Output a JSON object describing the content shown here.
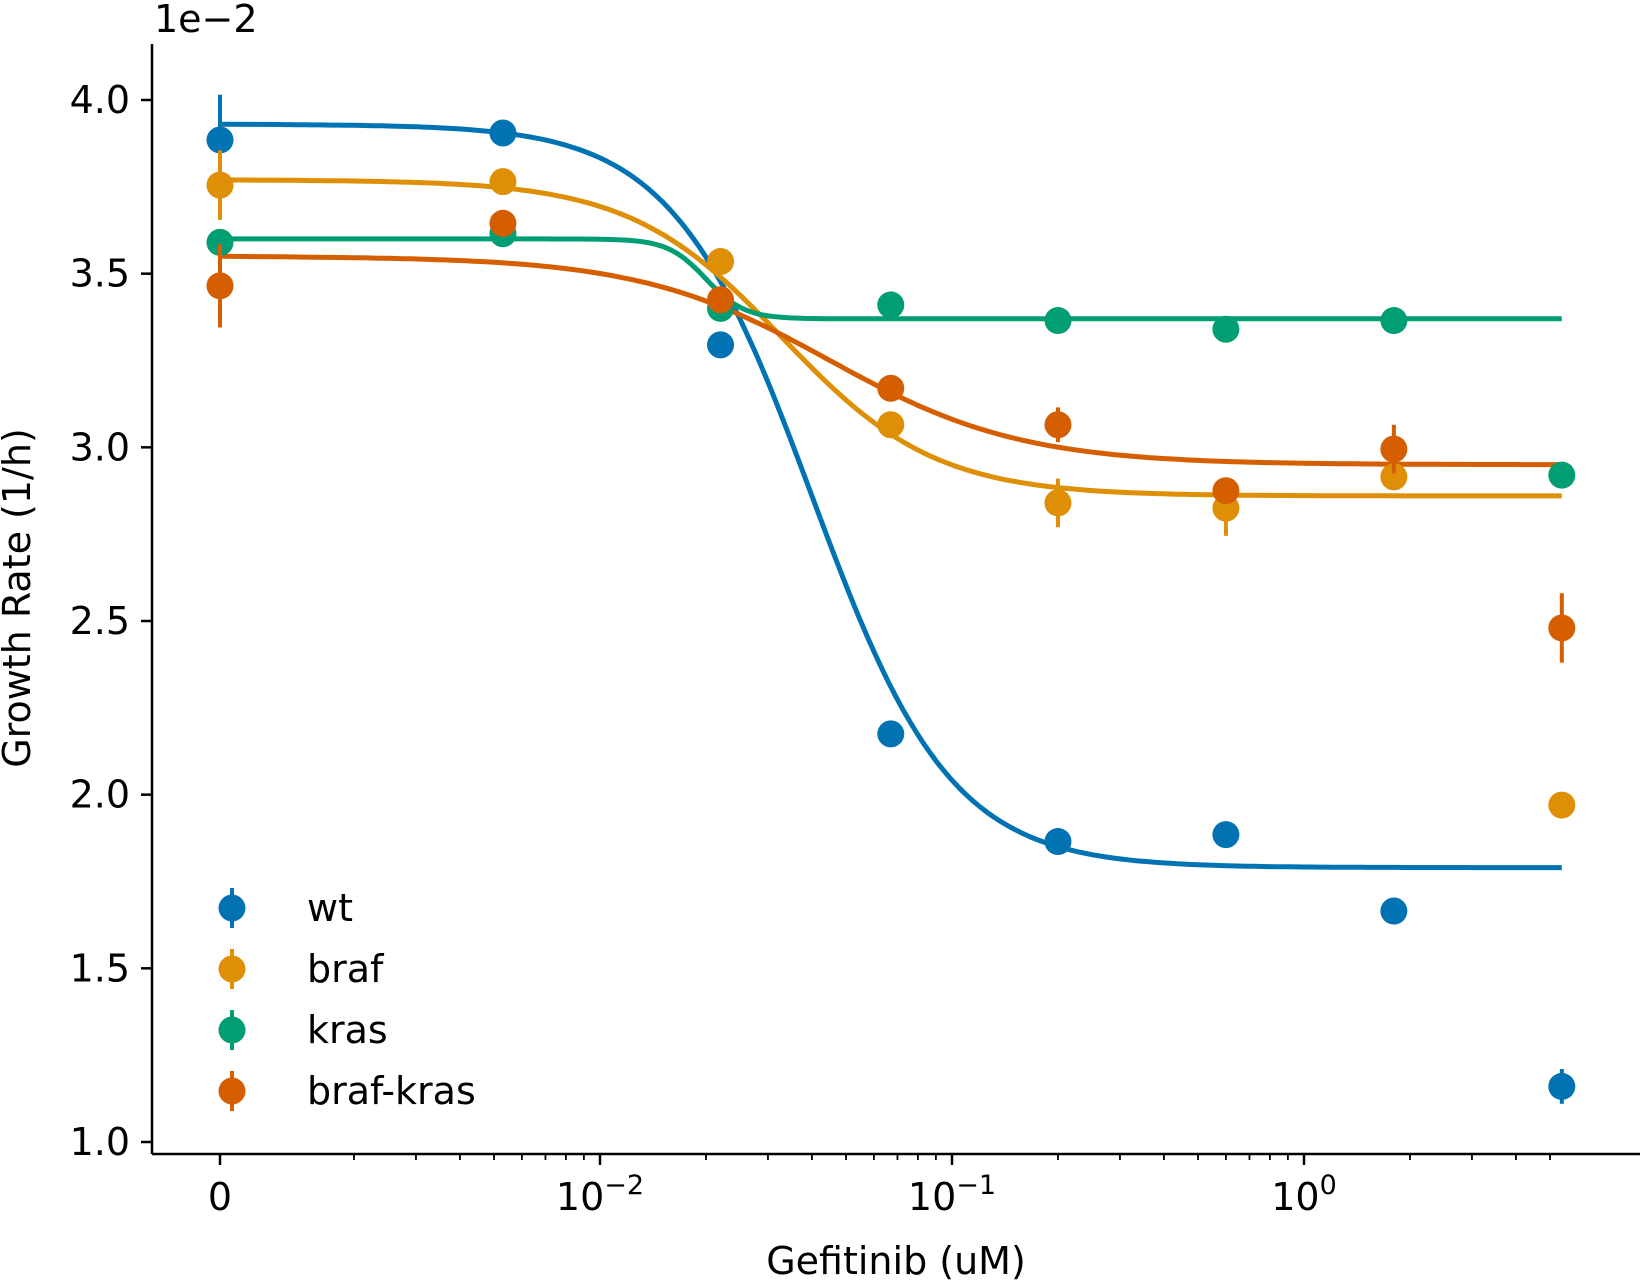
{
  "chart_data": {
    "type": "scatter",
    "title": "",
    "xlabel": "Gefitinib (uM)",
    "ylabel": "Growth Rate (1/h)",
    "y_offset_label": "1e−2",
    "x_scale": "symlog",
    "y_scale": "linear",
    "ylim": [
      0.0099,
      0.0417
    ],
    "x_ticks": [
      {
        "value": 0,
        "label": "0"
      },
      {
        "value": 0.01,
        "base": "10",
        "exp": "−2"
      },
      {
        "value": 0.1,
        "base": "10",
        "exp": "−1"
      },
      {
        "value": 1,
        "base": "10",
        "exp": "0"
      }
    ],
    "y_ticks": [
      {
        "value": 0.01,
        "label": "1.0"
      },
      {
        "value": 0.015,
        "label": "1.5"
      },
      {
        "value": 0.02,
        "label": "2.0"
      },
      {
        "value": 0.025,
        "label": "2.5"
      },
      {
        "value": 0.03,
        "label": "3.0"
      },
      {
        "value": 0.035,
        "label": "3.5"
      },
      {
        "value": 0.04,
        "label": "4.0"
      }
    ],
    "x": [
      0,
      0.0053,
      0.022,
      0.067,
      0.2,
      0.6,
      1.8,
      5.4
    ],
    "legend": {
      "position": "lower-left"
    },
    "series": [
      {
        "name": "wt",
        "color": "#0173b2",
        "y": [
          0.03885,
          0.03905,
          0.03295,
          0.02175,
          0.01865,
          0.01885,
          0.01665,
          0.0116
        ],
        "err": [
          0.0013,
          0.0003,
          0.0003,
          0.0003,
          0.0003,
          0.0003,
          0.0003,
          0.0005
        ],
        "fit": {
          "top": 0.0393,
          "bottom": 0.0179,
          "ec50": 0.04,
          "hill": 2.2
        }
      },
      {
        "name": "braf",
        "color": "#de8f05",
        "y": [
          0.03755,
          0.03765,
          0.03535,
          0.03065,
          0.0284,
          0.02825,
          0.02915,
          0.0197
        ],
        "err": [
          0.001,
          0.0003,
          0.0003,
          0.0003,
          0.0007,
          0.0008,
          0.0003,
          0.0003
        ],
        "fit": {
          "top": 0.0377,
          "bottom": 0.0286,
          "ec50": 0.033,
          "hill": 2.0
        }
      },
      {
        "name": "kras",
        "color": "#029e73",
        "y": [
          0.0359,
          0.03615,
          0.034,
          0.0341,
          0.03365,
          0.0334,
          0.03365,
          0.0292
        ],
        "err": [
          0.0003,
          0.0003,
          0.0003,
          0.0003,
          0.0003,
          0.0003,
          0.0003,
          0.0003
        ],
        "fit": {
          "top": 0.036,
          "bottom": 0.0337,
          "ec50": 0.02,
          "hill": 8.0
        }
      },
      {
        "name": "braf-kras",
        "color": "#d55e00",
        "y": [
          0.03465,
          0.03645,
          0.03425,
          0.0317,
          0.03065,
          0.02875,
          0.02995,
          0.0248
        ],
        "err": [
          0.0012,
          0.0003,
          0.0003,
          0.0003,
          0.0005,
          0.0003,
          0.0007,
          0.001
        ],
        "fit": {
          "top": 0.0355,
          "bottom": 0.0295,
          "ec50": 0.045,
          "hill": 1.6
        }
      }
    ]
  }
}
